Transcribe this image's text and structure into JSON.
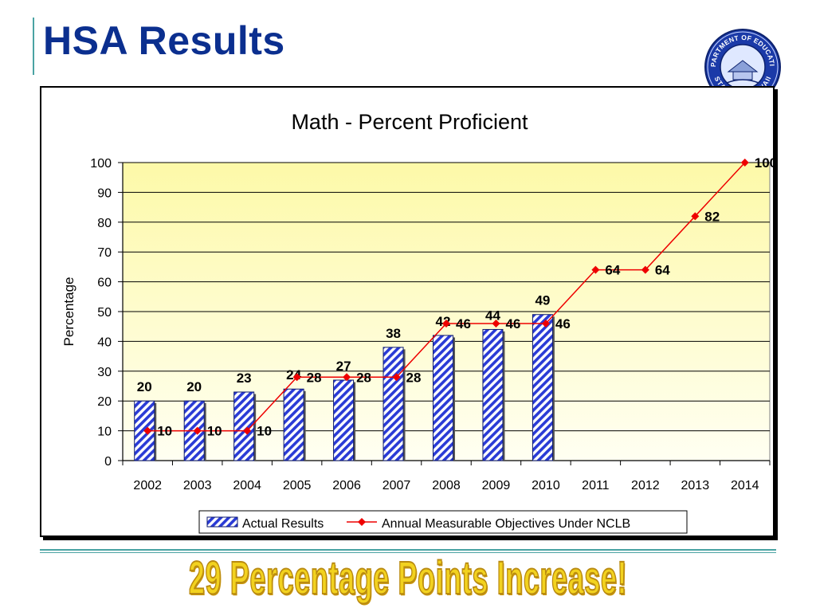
{
  "slide": {
    "title": "HSA Results",
    "banner": "29 Percentage Points Increase!",
    "seal": {
      "icon": "state-seal-icon",
      "top_text": "DEPARTMENT OF EDUCATION",
      "bottom_text": "STATE OF HAWAII"
    }
  },
  "colors": {
    "title": "#0b2f8f",
    "bar": "#2a3bd6",
    "line": "#ee0000",
    "plot_bg_top": "#fdf9a8",
    "plot_bg_bottom": "#fffff2",
    "banner": "#f2d21f"
  },
  "chart_data": {
    "type": "bar",
    "title": "Math - Percent Proficient",
    "ylabel": "Percentage",
    "xlabel": "",
    "ylim": [
      0,
      100
    ],
    "yticks": [
      0,
      10,
      20,
      30,
      40,
      50,
      60,
      70,
      80,
      90,
      100
    ],
    "grid": true,
    "legend_position": "bottom",
    "categories": [
      "2002",
      "2003",
      "2004",
      "2005",
      "2006",
      "2007",
      "2008",
      "2009",
      "2010",
      "2011",
      "2012",
      "2013",
      "2014"
    ],
    "series": [
      {
        "name": "Actual Results",
        "type": "bar",
        "values": [
          20,
          20,
          23,
          24,
          27,
          38,
          42,
          44,
          49,
          null,
          null,
          null,
          null
        ]
      },
      {
        "name": "Annual Measurable Objectives Under NCLB",
        "type": "line",
        "values": [
          10,
          10,
          10,
          28,
          28,
          28,
          46,
          46,
          46,
          64,
          64,
          82,
          100
        ]
      }
    ]
  }
}
